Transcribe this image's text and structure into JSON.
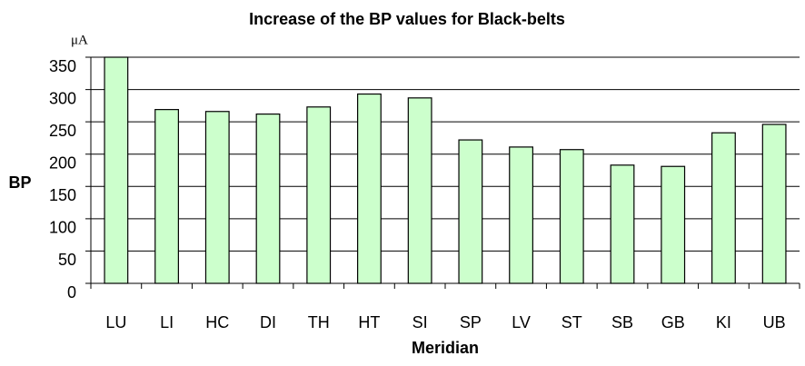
{
  "chart_data": {
    "type": "bar",
    "title": "Increase of the BP values for Black-belts",
    "y_unit": "μA",
    "ylabel": "BP",
    "xlabel": "Meridian",
    "categories": [
      "LU",
      "LI",
      "HC",
      "DI",
      "TH",
      "HT",
      "SI",
      "SP",
      "LV",
      "ST",
      "SB",
      "GB",
      "KI",
      "UB"
    ],
    "values": [
      350,
      269,
      266,
      262,
      273,
      293,
      287,
      222,
      211,
      207,
      183,
      181,
      233,
      246
    ],
    "color": "#ccffcc",
    "ylim": [
      0,
      350
    ],
    "yticks": [
      0,
      50,
      100,
      150,
      200,
      250,
      300,
      350
    ],
    "grid": true
  }
}
